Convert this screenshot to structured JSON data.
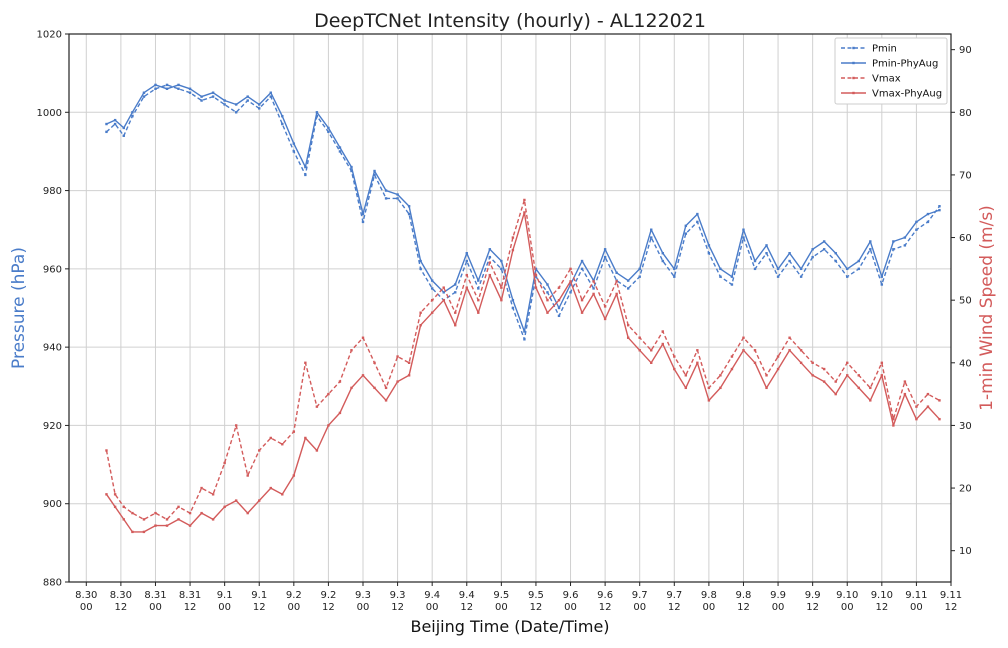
{
  "chart_data": {
    "type": "line",
    "title": "DeepTCNet Intensity (hourly) - AL122021",
    "xlabel": "Beijing Time (Date/Time)",
    "ylabel_left": "Pressure (hPa)",
    "ylabel_right": "1-min Wind Speed (m/s)",
    "ylim_left": [
      880,
      1020
    ],
    "ylim_right": [
      5,
      92.5
    ],
    "yticks_left": [
      "880",
      "900",
      "920",
      "940",
      "960",
      "980",
      "1000",
      "1020"
    ],
    "yticks_right": [
      "10",
      "20",
      "30",
      "40",
      "50",
      "60",
      "70",
      "80",
      "90"
    ],
    "x_unit": "hours since 8.30 00",
    "xlim": [
      -6,
      300
    ],
    "xticks": [
      {
        "line1": "8.30",
        "line2": "00"
      },
      {
        "line1": "8.30",
        "line2": "12"
      },
      {
        "line1": "8.31",
        "line2": "00"
      },
      {
        "line1": "8.31",
        "line2": "12"
      },
      {
        "line1": "9.1",
        "line2": "00"
      },
      {
        "line1": "9.1",
        "line2": "12"
      },
      {
        "line1": "9.2",
        "line2": "00"
      },
      {
        "line1": "9.2",
        "line2": "12"
      },
      {
        "line1": "9.3",
        "line2": "00"
      },
      {
        "line1": "9.3",
        "line2": "12"
      },
      {
        "line1": "9.4",
        "line2": "00"
      },
      {
        "line1": "9.4",
        "line2": "12"
      },
      {
        "line1": "9.5",
        "line2": "00"
      },
      {
        "line1": "9.5",
        "line2": "12"
      },
      {
        "line1": "9.6",
        "line2": "00"
      },
      {
        "line1": "9.6",
        "line2": "12"
      },
      {
        "line1": "9.7",
        "line2": "00"
      },
      {
        "line1": "9.7",
        "line2": "12"
      },
      {
        "line1": "9.8",
        "line2": "00"
      },
      {
        "line1": "9.8",
        "line2": "12"
      },
      {
        "line1": "9.9",
        "line2": "00"
      },
      {
        "line1": "9.9",
        "line2": "12"
      },
      {
        "line1": "9.10",
        "line2": "00"
      },
      {
        "line1": "9.10",
        "line2": "12"
      },
      {
        "line1": "9.11",
        "line2": "00"
      },
      {
        "line1": "9.11",
        "line2": "12"
      }
    ],
    "grid": true,
    "legend_position": "top-right",
    "series": [
      {
        "name": "Pmin",
        "axis": "left",
        "color": "#4a7cc9",
        "style": "dashed",
        "x": [
          7,
          10,
          13,
          16,
          20,
          24,
          28,
          32,
          36,
          40,
          44,
          48,
          52,
          56,
          60,
          64,
          68,
          72,
          76,
          80,
          84,
          88,
          92,
          96,
          100,
          104,
          108,
          112,
          116,
          120,
          124,
          128,
          132,
          136,
          140,
          144,
          148,
          152,
          156,
          160,
          164,
          168,
          172,
          176,
          180,
          184,
          188,
          192,
          196,
          200,
          204,
          208,
          212,
          216,
          220,
          224,
          228,
          232,
          236,
          240,
          244,
          248,
          252,
          256,
          260,
          264,
          268,
          272,
          276,
          280,
          284,
          288,
          292,
          296
        ],
        "y": [
          995,
          997,
          994,
          999,
          1004,
          1006,
          1007,
          1006,
          1005,
          1003,
          1004,
          1002,
          1000,
          1003,
          1001,
          1004,
          997,
          990,
          984,
          999,
          995,
          990,
          985,
          972,
          984,
          978,
          978,
          974,
          960,
          955,
          952,
          954,
          962,
          955,
          963,
          960,
          950,
          942,
          958,
          954,
          948,
          954,
          960,
          955,
          963,
          957,
          955,
          958,
          968,
          962,
          958,
          969,
          972,
          964,
          958,
          956,
          968,
          960,
          964,
          958,
          962,
          958,
          963,
          965,
          962,
          958,
          960,
          965,
          956,
          965,
          966,
          970,
          972,
          976
        ]
      },
      {
        "name": "Pmin-PhyAug",
        "axis": "left",
        "color": "#4a7cc9",
        "style": "solid",
        "x": [
          7,
          10,
          13,
          16,
          20,
          24,
          28,
          32,
          36,
          40,
          44,
          48,
          52,
          56,
          60,
          64,
          68,
          72,
          76,
          80,
          84,
          88,
          92,
          96,
          100,
          104,
          108,
          112,
          116,
          120,
          124,
          128,
          132,
          136,
          140,
          144,
          148,
          152,
          156,
          160,
          164,
          168,
          172,
          176,
          180,
          184,
          188,
          192,
          196,
          200,
          204,
          208,
          212,
          216,
          220,
          224,
          228,
          232,
          236,
          240,
          244,
          248,
          252,
          256,
          260,
          264,
          268,
          272,
          276,
          280,
          284,
          288,
          292,
          296
        ],
        "y": [
          997,
          998,
          996,
          1000,
          1005,
          1007,
          1006,
          1007,
          1006,
          1004,
          1005,
          1003,
          1002,
          1004,
          1002,
          1005,
          999,
          992,
          986,
          1000,
          996,
          991,
          986,
          974,
          985,
          980,
          979,
          976,
          962,
          957,
          954,
          956,
          964,
          957,
          965,
          962,
          952,
          944,
          960,
          956,
          950,
          956,
          962,
          957,
          965,
          959,
          957,
          960,
          970,
          964,
          960,
          971,
          974,
          966,
          960,
          958,
          970,
          962,
          966,
          960,
          964,
          960,
          965,
          967,
          964,
          960,
          962,
          967,
          958,
          967,
          968,
          972,
          974,
          975
        ]
      },
      {
        "name": "Vmax",
        "axis": "right",
        "color": "#d35b5b",
        "style": "dashed",
        "x": [
          7,
          10,
          13,
          16,
          20,
          24,
          28,
          32,
          36,
          40,
          44,
          48,
          52,
          56,
          60,
          64,
          68,
          72,
          76,
          80,
          84,
          88,
          92,
          96,
          100,
          104,
          108,
          112,
          116,
          120,
          124,
          128,
          132,
          136,
          140,
          144,
          148,
          152,
          156,
          160,
          164,
          168,
          172,
          176,
          180,
          184,
          188,
          192,
          196,
          200,
          204,
          208,
          212,
          216,
          220,
          224,
          228,
          232,
          236,
          240,
          244,
          248,
          252,
          256,
          260,
          264,
          268,
          272,
          276,
          280,
          284,
          288,
          292,
          296
        ],
        "y": [
          26,
          19,
          17,
          16,
          15,
          16,
          15,
          17,
          16,
          20,
          19,
          24,
          30,
          22,
          26,
          28,
          27,
          29,
          40,
          33,
          35,
          37,
          42,
          44,
          40,
          36,
          41,
          40,
          48,
          50,
          52,
          48,
          54,
          50,
          56,
          52,
          60,
          66,
          54,
          50,
          52,
          55,
          50,
          53,
          49,
          53,
          46,
          44,
          42,
          45,
          41,
          38,
          42,
          36,
          38,
          41,
          44,
          42,
          38,
          41,
          44,
          42,
          40,
          39,
          37,
          40,
          38,
          36,
          40,
          31,
          37,
          33,
          35,
          34
        ]
      },
      {
        "name": "Vmax-PhyAug",
        "axis": "right",
        "color": "#d35b5b",
        "style": "solid",
        "x": [
          7,
          10,
          13,
          16,
          20,
          24,
          28,
          32,
          36,
          40,
          44,
          48,
          52,
          56,
          60,
          64,
          68,
          72,
          76,
          80,
          84,
          88,
          92,
          96,
          100,
          104,
          108,
          112,
          116,
          120,
          124,
          128,
          132,
          136,
          140,
          144,
          148,
          152,
          156,
          160,
          164,
          168,
          172,
          176,
          180,
          184,
          188,
          192,
          196,
          200,
          204,
          208,
          212,
          216,
          220,
          224,
          228,
          232,
          236,
          240,
          244,
          248,
          252,
          256,
          260,
          264,
          268,
          272,
          276,
          280,
          284,
          288,
          292,
          296
        ],
        "y": [
          19,
          17,
          15,
          13,
          13,
          14,
          14,
          15,
          14,
          16,
          15,
          17,
          18,
          16,
          18,
          20,
          19,
          22,
          28,
          26,
          30,
          32,
          36,
          38,
          36,
          34,
          37,
          38,
          46,
          48,
          50,
          46,
          52,
          48,
          54,
          50,
          58,
          64,
          52,
          48,
          50,
          53,
          48,
          51,
          47,
          51,
          44,
          42,
          40,
          43,
          39,
          36,
          40,
          34,
          36,
          39,
          42,
          40,
          36,
          39,
          42,
          40,
          38,
          37,
          35,
          38,
          36,
          34,
          38,
          30,
          35,
          31,
          33,
          31
        ]
      }
    ]
  }
}
